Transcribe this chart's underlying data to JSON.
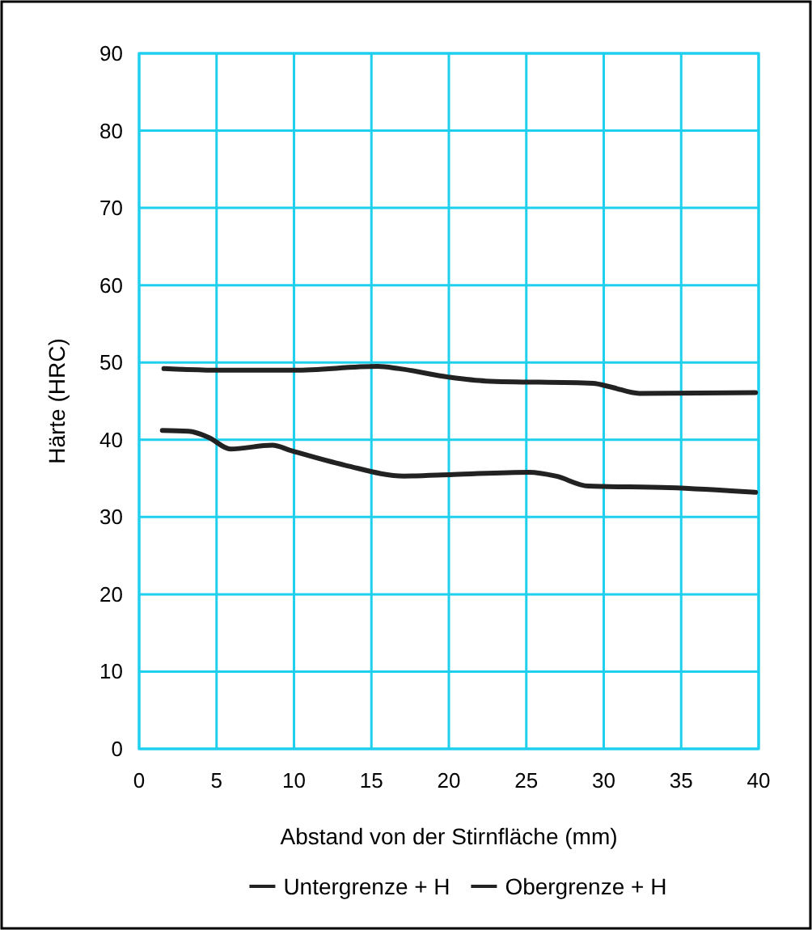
{
  "chart_data": {
    "type": "line",
    "xlabel": "Abstand von der Stirnfläche (mm)",
    "ylabel": "Härte (HRC)",
    "xlim": [
      0,
      40
    ],
    "xticks": [
      0,
      5,
      10,
      15,
      20,
      25,
      30,
      35,
      40
    ],
    "ylim": [
      0,
      90
    ],
    "yticks": [
      0,
      10,
      20,
      30,
      40,
      50,
      60,
      70,
      80,
      90
    ],
    "grid": true,
    "legend": "bottom",
    "marker": "none",
    "line_style": "solid",
    "series": [
      {
        "name": "Untergrenze + H",
        "color": "#222222",
        "x": [
          1.5,
          3.2,
          4.5,
          5.9,
          8.6,
          9.8,
          13.3,
          17.1,
          20.3,
          25.2,
          26.9,
          29,
          34.2,
          39.8
        ],
        "values": [
          41.2,
          41.1,
          40.3,
          38.8,
          39.3,
          38.6,
          36.7,
          35.3,
          35.5,
          35.8,
          35.3,
          34,
          33.8,
          33.2
        ]
      },
      {
        "name": "Obergrenze + H",
        "color": "#222222",
        "x": [
          1.6,
          5,
          10,
          15.4,
          16.8,
          20,
          22.4,
          29.3,
          30.5,
          32.3,
          39.8
        ],
        "values": [
          49.2,
          49.0,
          49.0,
          49.5,
          49.2,
          48.1,
          47.6,
          47.3,
          46.8,
          46.0,
          46.1
        ]
      }
    ]
  }
}
